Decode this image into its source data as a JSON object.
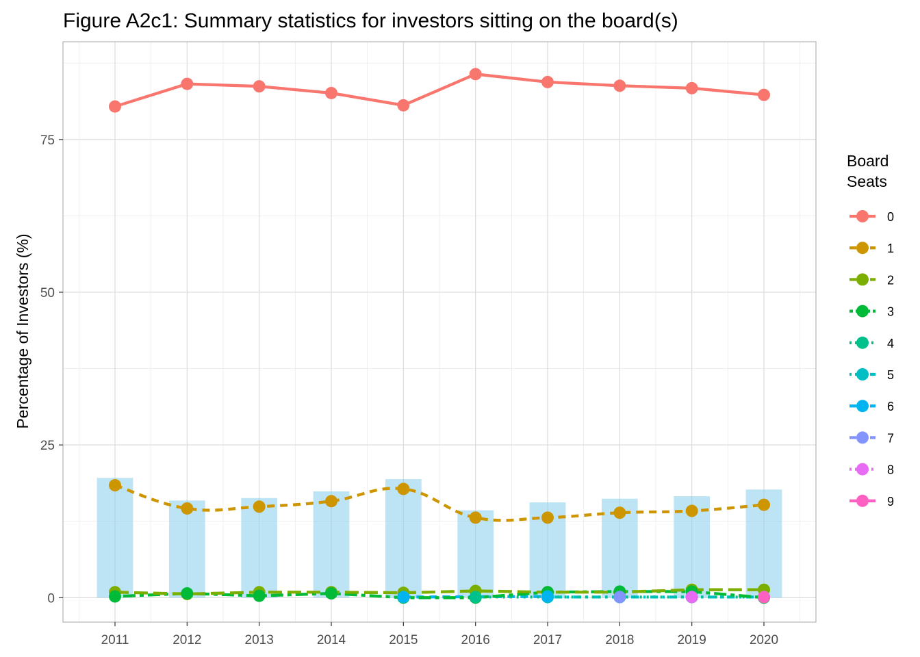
{
  "chart_data": {
    "type": "line",
    "title": "Figure A2c1: Summary statistics for investors sitting on the board(s)",
    "xlabel": "",
    "ylabel": "Percentage of Investors (%)",
    "x": [
      2011,
      2012,
      2013,
      2014,
      2015,
      2016,
      2017,
      2018,
      2019,
      2020
    ],
    "ylim": [
      -4,
      91
    ],
    "y_ticks": [
      0,
      25,
      50,
      75
    ],
    "grid": true,
    "legend": {
      "title": "Board\nSeats",
      "position": "right"
    },
    "bars": {
      "color": "#87CEEB",
      "values": [
        19.6,
        15.9,
        16.3,
        17.4,
        19.4,
        14.3,
        15.6,
        16.2,
        16.6,
        17.7
      ]
    },
    "series": [
      {
        "name": "0",
        "color": "#F8766D",
        "dash": "solid",
        "x": [
          2011,
          2012,
          2013,
          2014,
          2015,
          2016,
          2017,
          2018,
          2019,
          2020
        ],
        "values": [
          80.4,
          84.1,
          83.7,
          82.6,
          80.6,
          85.7,
          84.4,
          83.8,
          83.4,
          82.3
        ]
      },
      {
        "name": "1",
        "color": "#CD9600",
        "dash": "dashed",
        "x": [
          2011,
          2012,
          2013,
          2014,
          2015,
          2016,
          2017,
          2018,
          2019,
          2020
        ],
        "values": [
          18.4,
          14.6,
          14.9,
          15.8,
          17.8,
          13.1,
          13.1,
          13.9,
          14.2,
          15.2
        ]
      },
      {
        "name": "2",
        "color": "#7CAE00",
        "dash": "longdash",
        "x": [
          2011,
          2012,
          2013,
          2014,
          2015,
          2016,
          2017,
          2018,
          2019,
          2020
        ],
        "values": [
          0.9,
          0.6,
          0.9,
          0.9,
          0.8,
          1.1,
          0.9,
          0.9,
          1.3,
          1.3
        ]
      },
      {
        "name": "3",
        "color": "#00BA38",
        "dash": "twodash",
        "x": [
          2011,
          2012,
          2013,
          2014,
          2015,
          2016,
          2017,
          2018,
          2019,
          2020
        ],
        "values": [
          0.2,
          0.7,
          0.3,
          0.7,
          0.0,
          0.0,
          0.9,
          1.0,
          1.0,
          0.0
        ]
      },
      {
        "name": "4",
        "color": "#00C08B",
        "dash": "dotted",
        "x": [
          2016,
          2017,
          2018,
          2019,
          2020
        ],
        "values": [
          0.1,
          0.1,
          0.1,
          0.1,
          0.1
        ]
      },
      {
        "name": "5",
        "color": "#00BFC4",
        "dash": "dotdash",
        "x": [
          2017,
          2018,
          2019,
          2020
        ],
        "values": [
          0.1,
          0.1,
          0.1,
          0.1
        ]
      },
      {
        "name": "6",
        "color": "#00B4F0",
        "dash": "dashed",
        "x": [
          2015,
          2017
        ],
        "values": [
          0.1,
          0.2
        ]
      },
      {
        "name": "7",
        "color": "#8494FF",
        "dash": "longdash",
        "x": [
          2018
        ],
        "values": [
          0.1
        ]
      },
      {
        "name": "8",
        "color": "#E76BF3",
        "dash": "dotted",
        "x": [
          2019
        ],
        "values": [
          0.1
        ]
      },
      {
        "name": "9",
        "color": "#FF61C3",
        "dash": "solid",
        "x": [
          2020
        ],
        "values": [
          0.1
        ]
      }
    ],
    "legend_entries": [
      {
        "label": "0",
        "color": "#F8766D",
        "dash": "solid"
      },
      {
        "label": "1",
        "color": "#CD9600",
        "dash": "dashed"
      },
      {
        "label": "2",
        "color": "#7CAE00",
        "dash": "longdash"
      },
      {
        "label": "3",
        "color": "#00BA38",
        "dash": "twodash"
      },
      {
        "label": "4",
        "color": "#00C08B",
        "dash": "dotted"
      },
      {
        "label": "5",
        "color": "#00BFC4",
        "dash": "dotdash"
      },
      {
        "label": "6",
        "color": "#00B4F0",
        "dash": "dashed"
      },
      {
        "label": "7",
        "color": "#8494FF",
        "dash": "longdash"
      },
      {
        "label": "8",
        "color": "#E76BF3",
        "dash": "dotted"
      },
      {
        "label": "9",
        "color": "#FF61C3",
        "dash": "solid"
      }
    ]
  }
}
